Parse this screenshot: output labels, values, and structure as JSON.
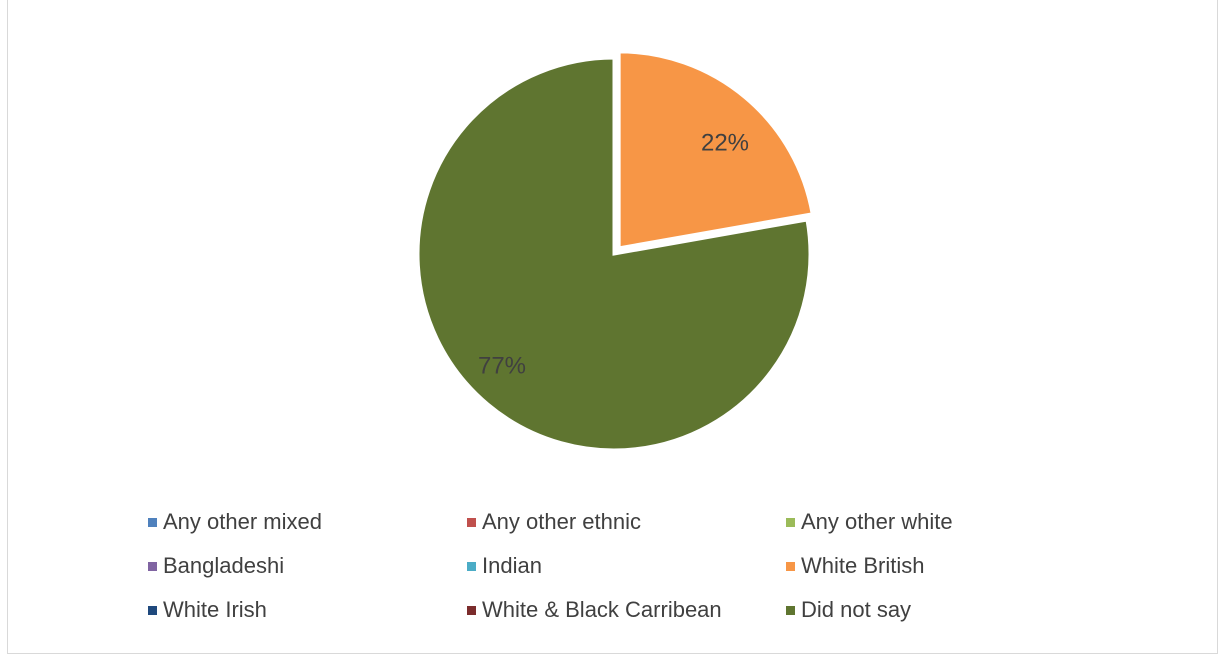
{
  "chart_data": {
    "type": "pie",
    "title": "",
    "slices": [
      {
        "name": "Any other mixed",
        "value": 0,
        "color": "#4f81bd"
      },
      {
        "name": "Any other ethnic",
        "value": 0,
        "color": "#c0504d"
      },
      {
        "name": "Any other white",
        "value": 0,
        "color": "#9bbb59"
      },
      {
        "name": "Bangladeshi",
        "value": 0,
        "color": "#8064a2"
      },
      {
        "name": "Indian",
        "value": 0,
        "color": "#4bacc6"
      },
      {
        "name": "White British",
        "value": 22,
        "color": "#f79646",
        "label": "22%"
      },
      {
        "name": "White Irish",
        "value": 0,
        "color": "#1f497d"
      },
      {
        "name": "White & Black Carribean",
        "value": 0,
        "color": "#7b2c2c"
      },
      {
        "name": "Did not say",
        "value": 77,
        "color": "#5f7530",
        "label": "77%"
      }
    ],
    "legend_position": "bottom"
  }
}
